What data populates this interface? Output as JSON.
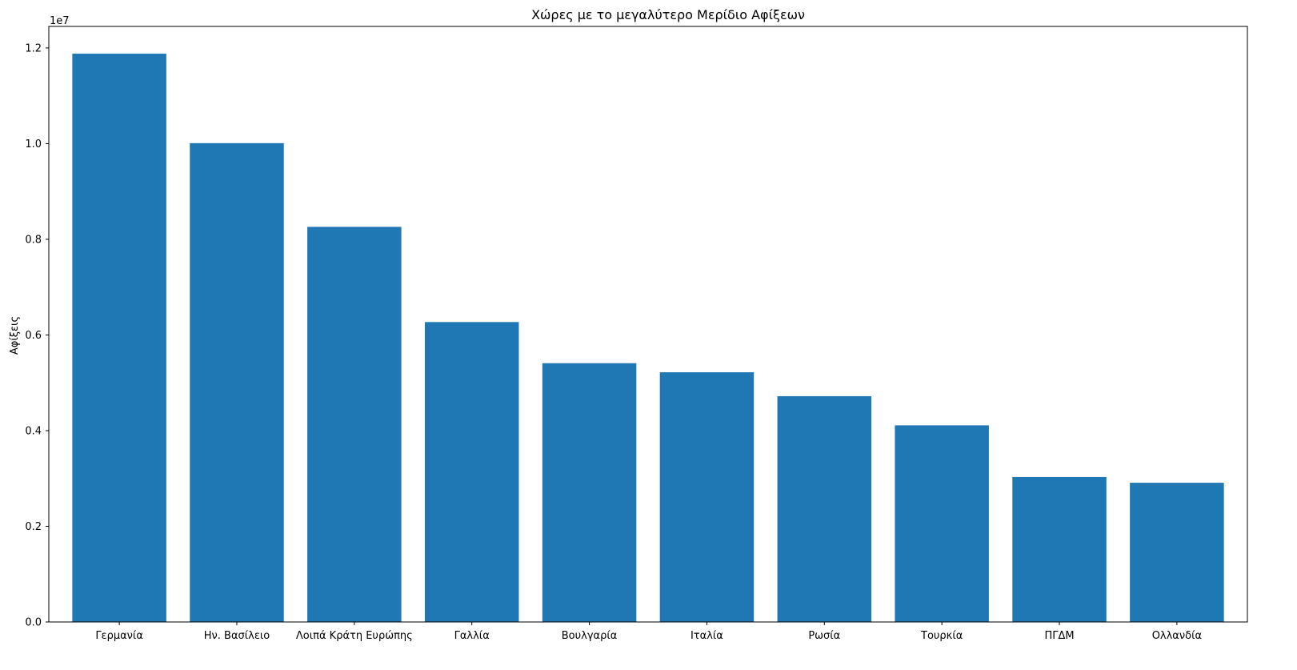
{
  "colors": {
    "bar": "#1f77b4",
    "axis": "#000000",
    "background": "#ffffff"
  },
  "chart_data": {
    "type": "bar",
    "title": "Χώρες με το μεγαλύτερο Μερίδιο Αφίξεων",
    "xlabel": "",
    "ylabel": "Αφίξεις",
    "scale_note": "1e7",
    "categories": [
      "Γερμανία",
      "Ην. Βασίλειο",
      "Λοιπά Κράτη Ευρώπης",
      "Γαλλία",
      "Βουλγαρία",
      "Ιταλία",
      "Ρωσία",
      "Τουρκία",
      "ΠΓΔΜ",
      "Ολλανδία"
    ],
    "values": [
      11880000,
      10010000,
      8260000,
      6270000,
      5410000,
      5220000,
      4720000,
      4110000,
      3030000,
      2910000
    ],
    "ylim": [
      0,
      12450000
    ],
    "yticks": [
      0,
      2000000,
      4000000,
      6000000,
      8000000,
      10000000,
      12000000
    ],
    "ytick_labels": [
      "0.0",
      "0.2",
      "0.4",
      "0.6",
      "0.8",
      "1.0",
      "1.2"
    ],
    "grid": false,
    "legend": "none"
  }
}
